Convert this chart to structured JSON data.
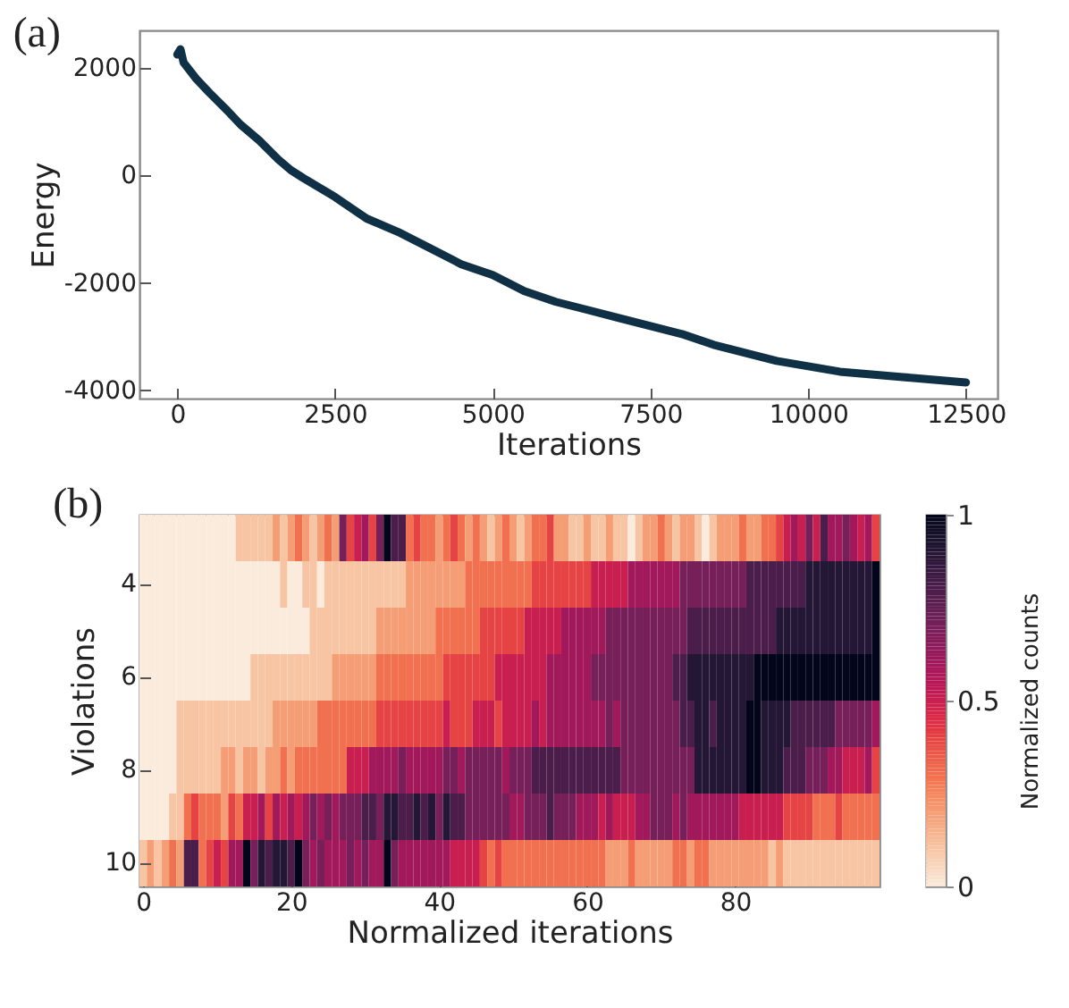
{
  "chart_data": [
    {
      "type": "line",
      "title": "(a)",
      "xlabel": "Iterations",
      "ylabel": "Energy",
      "x": [
        0,
        50,
        100,
        300,
        500,
        800,
        1000,
        1300,
        1600,
        1800,
        2000,
        2500,
        3000,
        3500,
        4000,
        4500,
        5000,
        5500,
        6000,
        6500,
        7000,
        7500,
        8000,
        8500,
        9000,
        9500,
        10000,
        10500,
        11000,
        11500,
        12000,
        12500
      ],
      "series": [
        {
          "color": "#0f3045",
          "values": [
            2250,
            2350,
            2100,
            1800,
            1550,
            1200,
            950,
            650,
            300,
            100,
            -50,
            -400,
            -800,
            -1050,
            -1350,
            -1650,
            -1850,
            -2150,
            -2350,
            -2500,
            -2650,
            -2800,
            -2950,
            -3150,
            -3300,
            -3450,
            -3550,
            -3650,
            -3700,
            -3750,
            -3800,
            -3850
          ]
        }
      ],
      "xlim": [
        -600,
        13000
      ],
      "xticks": [
        0,
        2500,
        5000,
        7500,
        10000,
        12500
      ],
      "ylim": [
        -4150,
        2700
      ],
      "yticks": [
        -4000,
        -2000,
        0,
        2000
      ],
      "grid": false
    },
    {
      "type": "heatmap",
      "title": "(b)",
      "xlabel": "Normalized iterations",
      "ylabel": "Violations",
      "clabel": "Normalized counts",
      "x": [
        0,
        1,
        2,
        3,
        4,
        5,
        6,
        7,
        8,
        9,
        10,
        11,
        12,
        13,
        14,
        15,
        16,
        17,
        18,
        19,
        20,
        21,
        22,
        23,
        24,
        25,
        26,
        27,
        28,
        29,
        30,
        31,
        32,
        33,
        34,
        35,
        36,
        37,
        38,
        39,
        40,
        41,
        42,
        43,
        44,
        45,
        46,
        47,
        48,
        49,
        50,
        51,
        52,
        53,
        54,
        55,
        56,
        57,
        58,
        59,
        60,
        61,
        62,
        63,
        64,
        65,
        66,
        67,
        68,
        69,
        70,
        71,
        72,
        73,
        74,
        75,
        76,
        77,
        78,
        79,
        80,
        81,
        82,
        83,
        84,
        85,
        86,
        87,
        88,
        89,
        90,
        91,
        92,
        93,
        94,
        95,
        96,
        97,
        98,
        99
      ],
      "xlim": [
        -0.5,
        99.5
      ],
      "xticks": [
        0,
        20,
        40,
        60,
        80
      ],
      "y_categories": [
        null,
        "4",
        null,
        "6",
        null,
        "8",
        null,
        "10"
      ],
      "clim": [
        0,
        1
      ],
      "cticks": [
        0,
        0.5,
        1
      ],
      "cells": [
        [
          0,
          0,
          0,
          0,
          0,
          0,
          0,
          0,
          0,
          0,
          0,
          0,
          0,
          0.1,
          0.1,
          0.1,
          0.1,
          0.1,
          0.2,
          0.1,
          0.2,
          0.3,
          0.2,
          0.1,
          0.2,
          0.3,
          0.2,
          0.7,
          0.4,
          0.5,
          0.6,
          0.4,
          0.7,
          1,
          0.8,
          0.8,
          0.3,
          0.4,
          0.3,
          0.3,
          0.2,
          0.3,
          0.4,
          0.3,
          0.2,
          0.3,
          0.2,
          0.1,
          0.2,
          0.3,
          0.2,
          0.1,
          0.2,
          0.3,
          0.3,
          0.4,
          0.2,
          0.2,
          0.1,
          0.1,
          0.2,
          0.1,
          0.1,
          0.2,
          0.1,
          0.1,
          0,
          0.1,
          0.2,
          0.2,
          0.3,
          0.2,
          0.1,
          0.2,
          0.2,
          0.1,
          0,
          0.1,
          0.2,
          0.2,
          0.2,
          0.3,
          0.2,
          0.2,
          0.3,
          0.3,
          0.4,
          0.5,
          0.6,
          0.5,
          0.7,
          0.5,
          0.8,
          0.6,
          0.6,
          0.7,
          0.6,
          0.5,
          0.6,
          0.4
        ],
        [
          0,
          0,
          0,
          0,
          0,
          0,
          0,
          0,
          0,
          0,
          0,
          0,
          0,
          0,
          0,
          0,
          0,
          0,
          0,
          0.1,
          0,
          0,
          0.1,
          0.1,
          0,
          0.1,
          0.1,
          0.1,
          0.1,
          0.1,
          0.1,
          0.1,
          0.1,
          0.1,
          0.1,
          0.1,
          0.2,
          0.2,
          0.2,
          0.2,
          0.2,
          0.2,
          0.2,
          0.2,
          0.3,
          0.3,
          0.3,
          0.3,
          0.3,
          0.3,
          0.3,
          0.3,
          0.3,
          0.4,
          0.4,
          0.4,
          0.4,
          0.4,
          0.4,
          0.4,
          0.4,
          0.5,
          0.5,
          0.5,
          0.5,
          0.5,
          0.6,
          0.6,
          0.6,
          0.6,
          0.6,
          0.6,
          0.6,
          0.7,
          0.7,
          0.7,
          0.7,
          0.7,
          0.7,
          0.7,
          0.7,
          0.7,
          0.8,
          0.8,
          0.8,
          0.8,
          0.8,
          0.8,
          0.8,
          0.8,
          0.9,
          0.9,
          0.9,
          0.9,
          0.9,
          0.9,
          0.9,
          0.9,
          0.9,
          1
        ],
        [
          0,
          0,
          0,
          0,
          0,
          0,
          0,
          0,
          0,
          0,
          0,
          0,
          0,
          0,
          0,
          0,
          0,
          0,
          0,
          0,
          0,
          0,
          0,
          0.1,
          0.1,
          0.1,
          0.1,
          0.1,
          0.1,
          0.1,
          0.1,
          0.1,
          0.2,
          0.2,
          0.2,
          0.2,
          0.2,
          0.2,
          0.2,
          0.2,
          0.3,
          0.3,
          0.3,
          0.3,
          0.3,
          0.3,
          0.4,
          0.4,
          0.4,
          0.4,
          0.4,
          0.4,
          0.5,
          0.5,
          0.5,
          0.5,
          0.5,
          0.6,
          0.6,
          0.6,
          0.6,
          0.6,
          0.6,
          0.7,
          0.7,
          0.7,
          0.7,
          0.7,
          0.7,
          0.7,
          0.7,
          0.7,
          0.7,
          0.7,
          0.8,
          0.8,
          0.8,
          0.8,
          0.8,
          0.8,
          0.8,
          0.8,
          0.8,
          0.8,
          0.8,
          0.8,
          0.9,
          0.9,
          0.9,
          0.9,
          0.9,
          0.9,
          0.9,
          0.9,
          0.9,
          0.9,
          0.9,
          0.9,
          0.9,
          1
        ],
        [
          0,
          0,
          0,
          0,
          0,
          0,
          0,
          0,
          0,
          0,
          0,
          0,
          0,
          0,
          0,
          0.1,
          0.1,
          0.1,
          0.1,
          0.1,
          0.1,
          0.1,
          0.1,
          0.1,
          0.1,
          0.1,
          0.2,
          0.2,
          0.2,
          0.2,
          0.2,
          0.2,
          0.3,
          0.3,
          0.3,
          0.3,
          0.3,
          0.3,
          0.3,
          0.3,
          0.3,
          0.4,
          0.4,
          0.4,
          0.4,
          0.4,
          0.4,
          0.4,
          0.5,
          0.5,
          0.5,
          0.5,
          0.5,
          0.5,
          0.5,
          0.6,
          0.6,
          0.6,
          0.6,
          0.6,
          0.6,
          0.7,
          0.7,
          0.7,
          0.7,
          0.7,
          0.7,
          0.7,
          0.7,
          0.7,
          0.7,
          0.7,
          0.8,
          0.8,
          0.9,
          0.9,
          0.9,
          0.9,
          0.9,
          0.9,
          0.9,
          0.9,
          0.9,
          1,
          1,
          1,
          1,
          1,
          1,
          1,
          1,
          1,
          1,
          1,
          1,
          1,
          1,
          1,
          1,
          1
        ],
        [
          0,
          0,
          0,
          0,
          0,
          0.1,
          0.1,
          0.1,
          0.1,
          0.1,
          0.1,
          0.1,
          0.1,
          0.1,
          0.1,
          0.1,
          0.1,
          0.1,
          0.2,
          0.2,
          0.2,
          0.2,
          0.2,
          0.2,
          0.3,
          0.3,
          0.3,
          0.3,
          0.3,
          0.3,
          0.3,
          0.3,
          0.4,
          0.4,
          0.4,
          0.4,
          0.4,
          0.4,
          0.4,
          0.4,
          0.4,
          0.5,
          0.4,
          0.4,
          0.4,
          0.5,
          0.5,
          0.5,
          0.4,
          0.5,
          0.5,
          0.5,
          0.5,
          0.6,
          0.5,
          0.6,
          0.6,
          0.6,
          0.6,
          0.6,
          0.6,
          0.6,
          0.6,
          0.7,
          0.6,
          0.7,
          0.7,
          0.7,
          0.7,
          0.7,
          0.7,
          0.7,
          0.7,
          0.8,
          0.8,
          0.9,
          0.9,
          0.8,
          0.9,
          0.9,
          0.9,
          0.9,
          1,
          1,
          0.9,
          0.9,
          0.9,
          0.9,
          0.8,
          0.8,
          0.8,
          0.8,
          0.8,
          0.8,
          0.7,
          0.7,
          0.7,
          0.7,
          0.7,
          0.6
        ],
        [
          0,
          0,
          0,
          0,
          0,
          0.1,
          0.1,
          0.1,
          0.1,
          0.1,
          0.1,
          0.2,
          0.2,
          0.1,
          0.2,
          0.2,
          0.1,
          0.2,
          0.2,
          0.3,
          0.2,
          0.3,
          0.3,
          0.3,
          0.3,
          0.3,
          0.3,
          0.3,
          0.5,
          0.5,
          0.5,
          0.6,
          0.6,
          0.6,
          0.6,
          0.7,
          0.6,
          0.6,
          0.6,
          0.6,
          0.6,
          0.7,
          0.7,
          0.6,
          0.7,
          0.7,
          0.7,
          0.7,
          0.7,
          0.6,
          0.7,
          0.7,
          0.7,
          0.8,
          0.8,
          0.8,
          0.8,
          0.8,
          0.8,
          0.8,
          0.8,
          0.8,
          0.8,
          0.8,
          0.8,
          0.7,
          0.7,
          0.7,
          0.7,
          0.7,
          0.7,
          0.7,
          0.7,
          0.7,
          0.7,
          0.9,
          0.9,
          0.9,
          0.9,
          0.9,
          0.9,
          0.9,
          1,
          1,
          0.9,
          0.9,
          0.9,
          0.8,
          0.8,
          0.8,
          0.7,
          0.7,
          0.7,
          0.6,
          0.6,
          0.5,
          0.5,
          0.5,
          0.6,
          0.4
        ],
        [
          0,
          0,
          0,
          0,
          0.1,
          0.1,
          0.3,
          0.4,
          0.3,
          0.3,
          0.3,
          0.2,
          0.4,
          0.3,
          0.5,
          0.5,
          0.6,
          0.4,
          0.6,
          0.5,
          0.6,
          0.5,
          0.6,
          0.7,
          0.6,
          0.7,
          0.6,
          0.7,
          0.7,
          0.7,
          0.8,
          0.8,
          0.7,
          0.9,
          0.9,
          0.8,
          0.8,
          0.9,
          0.8,
          0.9,
          0.7,
          0.9,
          0.8,
          0.8,
          0.7,
          0.7,
          0.7,
          0.7,
          0.7,
          0.7,
          0.6,
          0.6,
          0.7,
          0.7,
          0.7,
          0.8,
          0.7,
          0.7,
          0.7,
          0.6,
          0.6,
          0.6,
          0.5,
          0.6,
          0.5,
          0.5,
          0.5,
          0.6,
          0.6,
          0.7,
          0.7,
          0.7,
          0.6,
          0.7,
          0.6,
          0.6,
          0.6,
          0.6,
          0.6,
          0.6,
          0.6,
          0.5,
          0.5,
          0.5,
          0.5,
          0.5,
          0.5,
          0.4,
          0.4,
          0.4,
          0.4,
          0.3,
          0.3,
          0.3,
          0.4,
          0.3,
          0.3,
          0.3,
          0.3,
          0.3
        ],
        [
          0.1,
          0.2,
          0.1,
          0.2,
          0.3,
          0.2,
          0.8,
          0.8,
          0.3,
          0.4,
          0.5,
          0.4,
          0.6,
          0.6,
          1,
          0.7,
          0.9,
          0.8,
          0.9,
          0.9,
          0.8,
          1,
          0.7,
          0.6,
          0.7,
          0.6,
          0.6,
          0.6,
          0.7,
          0.6,
          0.7,
          0.6,
          0.6,
          1,
          0.7,
          0.6,
          0.6,
          0.6,
          0.6,
          0.6,
          0.6,
          0.6,
          0.5,
          0.5,
          0.5,
          0.5,
          0.4,
          0.3,
          0.4,
          0.3,
          0.3,
          0.3,
          0.3,
          0.3,
          0.3,
          0.3,
          0.3,
          0.3,
          0.3,
          0.3,
          0.3,
          0.3,
          0.3,
          0.2,
          0.2,
          0.2,
          0.3,
          0.2,
          0.2,
          0.2,
          0.2,
          0.2,
          0.3,
          0.3,
          0.2,
          0.3,
          0.3,
          0.2,
          0.2,
          0.2,
          0.2,
          0.2,
          0.2,
          0.2,
          0.2,
          0.1,
          0.2,
          0.1,
          0.1,
          0.1,
          0.1,
          0.1,
          0.1,
          0.1,
          0.1,
          0.1,
          0.1,
          0.1,
          0.1,
          0.1
        ]
      ]
    }
  ]
}
